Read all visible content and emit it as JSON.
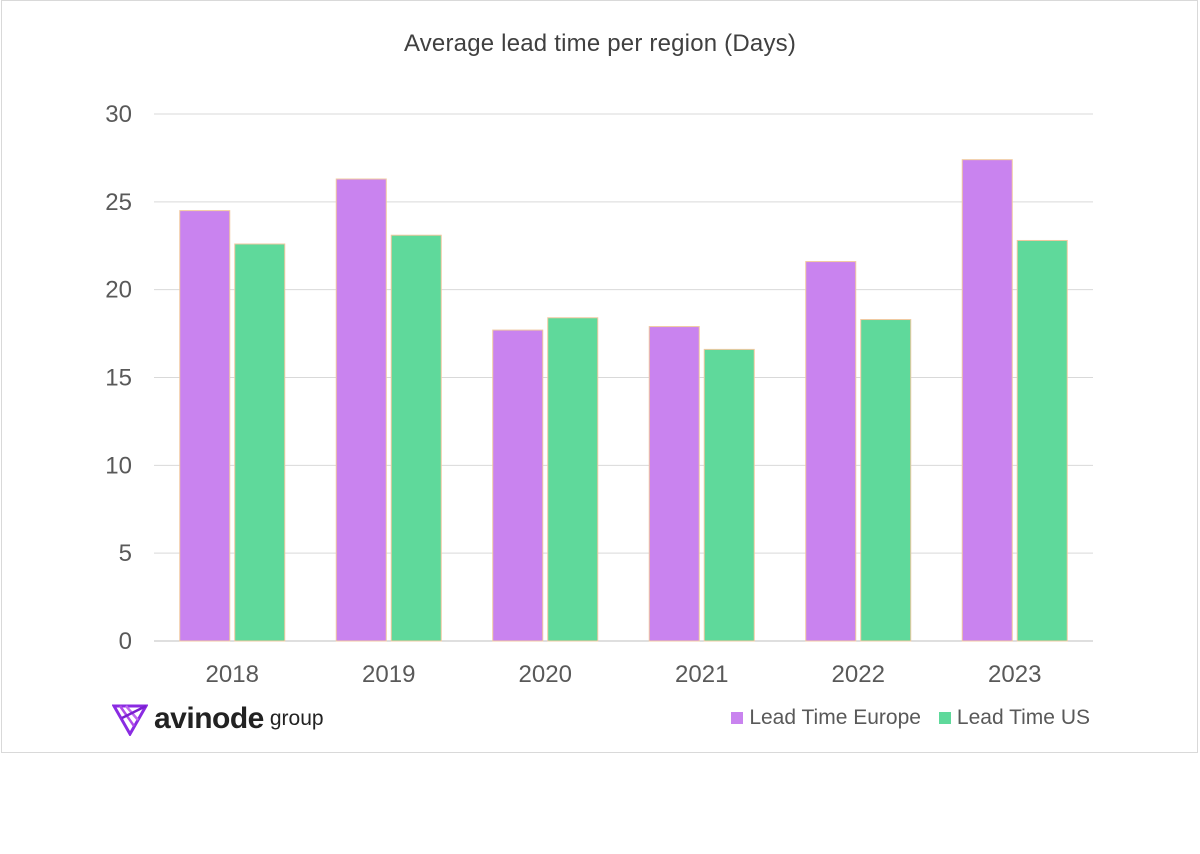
{
  "chart_data": {
    "type": "bar",
    "title": "Average lead time per region (Days)",
    "categories": [
      "2018",
      "2019",
      "2020",
      "2021",
      "2022",
      "2023"
    ],
    "series": [
      {
        "name": "Lead Time Europe",
        "color": "#c983ef",
        "values": [
          24.5,
          26.3,
          17.7,
          17.9,
          21.6,
          27.4
        ]
      },
      {
        "name": "Lead Time US",
        "color": "#5fd99b",
        "values": [
          22.6,
          23.1,
          18.4,
          16.6,
          18.3,
          22.8
        ]
      }
    ],
    "ylim": [
      0,
      30
    ],
    "yticks": [
      "0",
      "5",
      "10",
      "15",
      "20",
      "25",
      "30"
    ],
    "grid": true,
    "legend_position": "bottom-right"
  },
  "logo": {
    "icon": "avinode-logo-icon",
    "wordmark": "avinode",
    "subtext": "group"
  }
}
